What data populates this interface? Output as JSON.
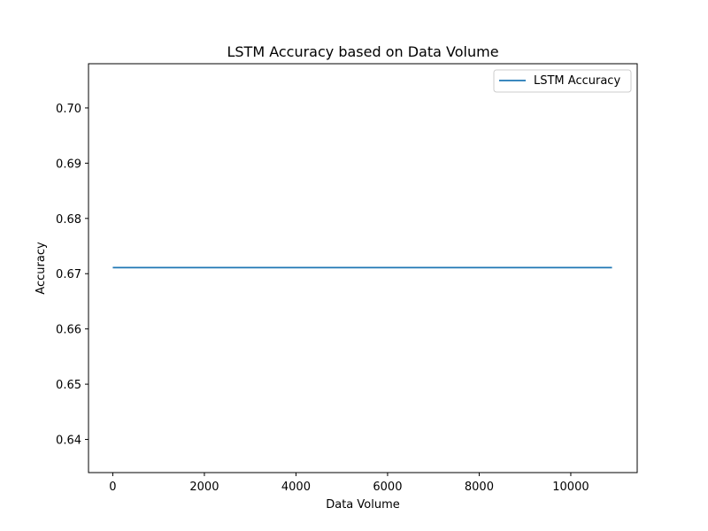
{
  "chart_data": {
    "type": "line",
    "title": "LSTM Accuracy based on Data Volume",
    "xlabel": "Data Volume",
    "ylabel": "Accuracy",
    "xlim": [
      -530,
      11450
    ],
    "ylim": [
      0.634,
      0.708
    ],
    "xticks": [
      0,
      2000,
      4000,
      6000,
      8000,
      10000
    ],
    "xtick_labels": [
      "0",
      "2000",
      "4000",
      "6000",
      "8000",
      "10000"
    ],
    "yticks": [
      0.64,
      0.65,
      0.66,
      0.67,
      0.68,
      0.69,
      0.7
    ],
    "ytick_labels": [
      "0.64",
      "0.65",
      "0.66",
      "0.67",
      "0.68",
      "0.69",
      "0.70"
    ],
    "grid": false,
    "legend_position": "top-right",
    "series": [
      {
        "name": "LSTM Accuracy",
        "color": "#1f77b4",
        "x": [
          0,
          10900
        ],
        "y": [
          0.6711,
          0.6711
        ]
      }
    ]
  }
}
